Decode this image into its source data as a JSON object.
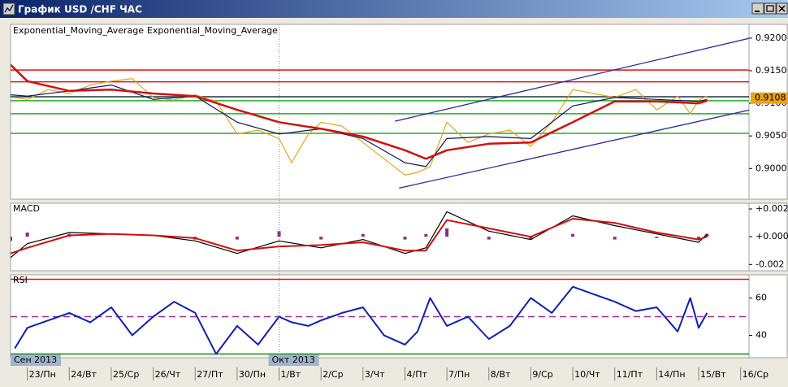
{
  "window_title": "График USD /CHF ЧАС",
  "chart_data": [
    {
      "type": "line",
      "xlim": [
        -0.4,
        17.2
      ],
      "ylim": [
        0.8953,
        0.9221
      ],
      "yticks": [
        {
          "value": 0.92,
          "label": "0.9200"
        },
        {
          "value": 0.915,
          "label": "0.9150"
        },
        {
          "value": 0.91,
          "label": "0.9100"
        },
        {
          "value": 0.905,
          "label": "0.9050"
        },
        {
          "value": 0.9,
          "label": "0.9000"
        }
      ],
      "series": [
        {
          "type": "line",
          "color": "#e8a317",
          "x": [
            -0.3,
            0,
            0.5,
            1,
            1.5,
            2,
            2.5,
            3,
            3.5,
            4,
            4.5,
            5,
            5.5,
            6,
            6.3,
            6.7,
            7,
            7.5,
            8,
            8.5,
            9,
            9.3,
            9.6,
            10,
            10.5,
            11,
            11.5,
            12,
            12.5,
            13,
            13.5,
            14,
            14.5,
            15,
            15.5,
            15.8,
            16,
            16.2
          ],
          "values": [
            0.9109,
            0.9106,
            0.9121,
            0.9115,
            0.9128,
            0.9134,
            0.9138,
            0.9109,
            0.9105,
            0.9113,
            0.9103,
            0.9053,
            0.9059,
            0.9046,
            0.9009,
            0.9053,
            0.9071,
            0.9065,
            0.904,
            0.9015,
            0.899,
            0.8994,
            0.9003,
            0.9071,
            0.904,
            0.9053,
            0.9059,
            0.9034,
            0.9071,
            0.9121,
            0.9115,
            0.9109,
            0.9121,
            0.909,
            0.9111,
            0.9084,
            0.9105,
            0.9111
          ]
        },
        {
          "type": "line",
          "name": "Exponential_Moving_Average",
          "color": "#10106a",
          "x": [
            -0.4,
            0,
            1,
            2,
            3,
            4,
            5,
            6,
            7,
            8,
            9,
            9.5,
            10,
            11,
            12,
            13,
            14,
            15,
            16,
            16.2
          ],
          "values": [
            0.9113,
            0.9111,
            0.9119,
            0.9128,
            0.9106,
            0.9111,
            0.9071,
            0.9053,
            0.9061,
            0.9046,
            0.9009,
            0.9003,
            0.9046,
            0.9049,
            0.9046,
            0.9096,
            0.9109,
            0.9106,
            0.9103,
            0.9106
          ]
        },
        {
          "type": "line",
          "name": "Exponential_Moving_Average",
          "color": "#d01010",
          "width": 2.5,
          "x": [
            -0.4,
            0,
            1,
            2,
            3,
            4,
            5,
            6,
            7,
            8,
            9,
            9.5,
            10,
            11,
            12,
            13,
            14,
            15,
            16,
            16.2
          ],
          "values": [
            0.9159,
            0.9134,
            0.9119,
            0.9121,
            0.9115,
            0.9111,
            0.909,
            0.9071,
            0.9061,
            0.9049,
            0.9028,
            0.9015,
            0.9028,
            0.9038,
            0.904,
            0.9071,
            0.9103,
            0.9103,
            0.91,
            0.9104
          ]
        }
      ],
      "hlines": [
        {
          "value": 0.9151,
          "color": "#e01010"
        },
        {
          "value": 0.9133,
          "color": "#e01010"
        },
        {
          "value": 0.911,
          "color": "#203040"
        },
        {
          "value": 0.9104,
          "color": "#20b020"
        },
        {
          "value": 0.9084,
          "color": "#20b020"
        },
        {
          "value": 0.9054,
          "color": "#20b020"
        }
      ],
      "trendlines": [
        {
          "x": [
            8.76,
            17.23
          ],
          "y": [
            0.90725,
            0.92
          ],
          "color": "#2a2a9a"
        },
        {
          "x": [
            8.86,
            17.23
          ],
          "y": [
            0.897,
            0.909
          ],
          "color": "#2a2a9a"
        }
      ],
      "last_price": 0.9108
    },
    {
      "type": "line",
      "title": "MACD",
      "xlim": [
        -0.4,
        17.2
      ],
      "ylim": [
        -0.00245,
        0.00241
      ],
      "yticks": [
        {
          "value": 0.002,
          "label": "+0.002"
        },
        {
          "value": 0,
          "label": "+0.000"
        },
        -0.002
      ],
      "series": [
        {
          "type": "bar",
          "color": "#8a2a8a",
          "x": [
            -0.4,
            0,
            1,
            2,
            3,
            4,
            5,
            6,
            7,
            8,
            9,
            9.5,
            10,
            11,
            12,
            13,
            14,
            15,
            16,
            16.2
          ],
          "values": [
            -0.0003,
            0.0003,
            0.0002,
            0,
            0,
            -0.0002,
            -0.0002,
            0.0004,
            -0.0002,
            0.0002,
            -0.0002,
            0.0002,
            0.0006,
            -0.0002,
            -0.0002,
            0.0002,
            -0.0002,
            -0.0001,
            -0.0002,
            0.0002
          ]
        },
        {
          "type": "line",
          "color": "#000000",
          "x": [
            -0.4,
            0,
            1,
            2,
            3,
            4,
            5,
            6,
            7,
            8,
            9,
            9.5,
            10,
            11,
            12,
            13,
            14,
            15,
            16,
            16.2
          ],
          "values": [
            -0.0015,
            -0.0005,
            0.0003,
            0.0002,
            0.0001,
            -0.0003,
            -0.0012,
            -0.0003,
            -0.0008,
            -0.0002,
            -0.0012,
            -0.0008,
            0.0018,
            0.0004,
            -0.0002,
            0.0015,
            0.0008,
            0.0002,
            -0.0004,
            0.0002
          ]
        },
        {
          "type": "line",
          "color": "#d01010",
          "width": 2,
          "x": [
            -0.4,
            0,
            1,
            2,
            3,
            4,
            5,
            6,
            7,
            8,
            9,
            9.5,
            10,
            11,
            12,
            13,
            14,
            15,
            16,
            16.2
          ],
          "values": [
            -0.0012,
            -0.0008,
            0.0001,
            0.0002,
            0.0001,
            -0.0001,
            -0.001,
            -0.0007,
            -0.0006,
            -0.0004,
            -0.001,
            -0.001,
            0.0012,
            0.0006,
            0,
            0.0013,
            0.001,
            0.0003,
            -0.0002,
            0
          ]
        }
      ]
    },
    {
      "type": "line",
      "title": "RSI",
      "xlim": [
        -0.4,
        17.2
      ],
      "ylim": [
        28,
        72.4
      ],
      "yticks": [
        60,
        40
      ],
      "series": [
        {
          "type": "line",
          "color": "#1020b0",
          "width": 2,
          "x": [
            -0.3,
            0,
            0.5,
            1,
            1.5,
            2,
            2.5,
            3,
            3.5,
            4,
            4.5,
            5,
            5.5,
            6,
            6.3,
            6.7,
            7,
            7.5,
            8,
            8.5,
            9,
            9.3,
            9.6,
            10,
            10.5,
            11,
            11.5,
            12,
            12.5,
            13,
            13.5,
            14,
            14.5,
            15,
            15.5,
            15.8,
            16,
            16.2
          ],
          "values": [
            33,
            44,
            48,
            52,
            47,
            55,
            40,
            50,
            58,
            52,
            30,
            45,
            35,
            50,
            47,
            45,
            48,
            52,
            55,
            40,
            35,
            42,
            60,
            45,
            50,
            38,
            45,
            60,
            52,
            66,
            62,
            58,
            53,
            55,
            42,
            60,
            44,
            52
          ]
        }
      ],
      "hlines": [
        {
          "value": 70,
          "color": "#e01010"
        },
        {
          "value": 50,
          "color": "#9a2a9a",
          "dash": true
        },
        {
          "value": 30,
          "color": "#109010"
        }
      ],
      "xticks": [
        {
          "value": 0,
          "label": "23/Пн"
        },
        {
          "value": 1,
          "label": "24/Вт"
        },
        {
          "value": 2,
          "label": "25/Ср"
        },
        {
          "value": 3,
          "label": "26/Чт"
        },
        {
          "value": 4,
          "label": "27/Пт"
        },
        {
          "value": 5,
          "label": "30/Пн"
        },
        {
          "value": 6,
          "label": "1/Вт"
        },
        {
          "value": 7,
          "label": "2/Ср"
        },
        {
          "value": 8,
          "label": "3/Чт"
        },
        {
          "value": 9,
          "label": "4/Пт"
        },
        {
          "value": 10,
          "label": "7/Пн"
        },
        {
          "value": 11,
          "label": "8/Вт"
        },
        {
          "value": 12,
          "label": "9/Ср"
        },
        {
          "value": 13,
          "label": "10/Чт"
        },
        {
          "value": 14,
          "label": "11/Пт"
        },
        {
          "value": 15,
          "label": "14/Пн"
        },
        {
          "value": 16,
          "label": "15/Вт"
        },
        {
          "value": 17,
          "label": "16/Ср"
        }
      ],
      "month_labels": [
        {
          "value": -0.4,
          "label": "Сен 2013"
        },
        {
          "value": 5.75,
          "label": "Окт 2013"
        }
      ]
    }
  ]
}
